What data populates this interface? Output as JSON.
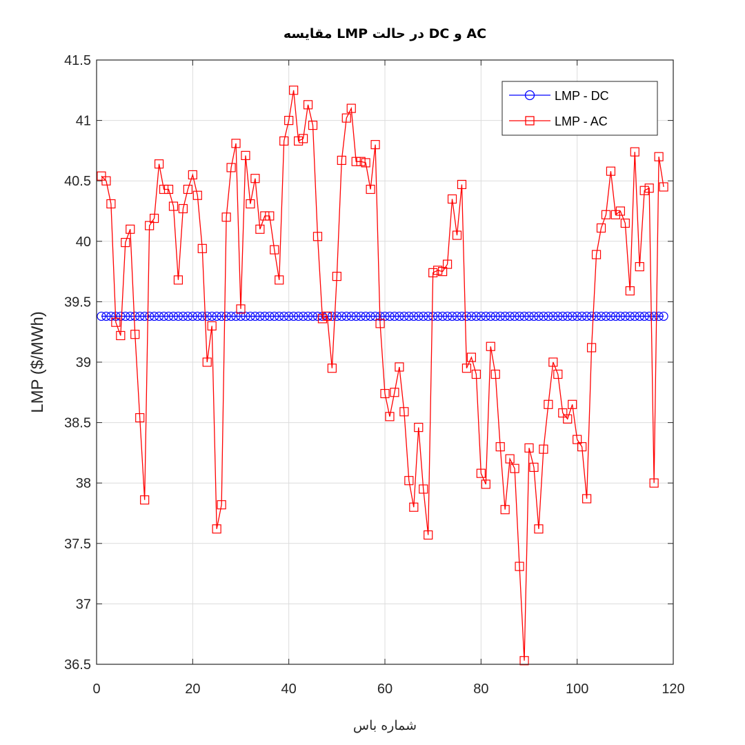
{
  "chart_data": {
    "type": "line",
    "title": "مقایسه LMP در حالت DC و AC",
    "xlabel": "شماره باس",
    "ylabel": "LMP  ($/MWh)",
    "xlim": [
      0,
      120
    ],
    "ylim": [
      36.5,
      41.5
    ],
    "xticks": [
      0,
      20,
      40,
      60,
      80,
      100,
      120
    ],
    "yticks": [
      36.5,
      37,
      37.5,
      38,
      38.5,
      39,
      39.5,
      40,
      40.5,
      41,
      41.5
    ],
    "xtick_labels": [
      "0",
      "20",
      "40",
      "60",
      "80",
      "100",
      "120"
    ],
    "ytick_labels": [
      "36.5",
      "37",
      "37.5",
      "38",
      "38.5",
      "39",
      "39.5",
      "40",
      "40.5",
      "41",
      "41.5"
    ],
    "grid": true,
    "legend_position": "top-right",
    "series": [
      {
        "name": "LMP - DC",
        "color": "#0000ff",
        "marker": "circle",
        "x_start": 1,
        "x_end": 118,
        "constant_value": 39.38
      },
      {
        "name": "LMP - AC",
        "color": "#ff0000",
        "marker": "square",
        "x_start": 1,
        "values": [
          40.54,
          40.5,
          40.31,
          39.33,
          39.22,
          39.99,
          40.1,
          39.23,
          38.54,
          37.86,
          40.13,
          40.19,
          40.64,
          40.43,
          40.43,
          40.29,
          39.68,
          40.27,
          40.43,
          40.55,
          40.38,
          39.94,
          39.0,
          39.3,
          37.62,
          37.82,
          40.2,
          40.61,
          40.81,
          39.44,
          40.71,
          40.31,
          40.52,
          40.1,
          40.21,
          40.21,
          39.93,
          39.68,
          40.83,
          41.0,
          41.25,
          40.83,
          40.85,
          41.13,
          40.96,
          40.04,
          39.36,
          39.38,
          38.95,
          39.71,
          40.67,
          41.02,
          41.1,
          40.66,
          40.66,
          40.65,
          40.43,
          40.8,
          39.32,
          38.74,
          38.55,
          38.75,
          38.96,
          38.59,
          38.02,
          37.8,
          38.46,
          37.95,
          37.57,
          39.74,
          39.76,
          39.75,
          39.81,
          40.35,
          40.05,
          40.47,
          38.95,
          39.04,
          38.9,
          38.08,
          37.99,
          39.13,
          38.9,
          38.3,
          37.78,
          38.2,
          38.12,
          37.31,
          36.53,
          38.29,
          38.13,
          37.62,
          38.28,
          38.65,
          39.0,
          38.9,
          38.58,
          38.53,
          38.65,
          38.36,
          38.3,
          37.87,
          39.12,
          39.89,
          40.11,
          40.22,
          40.58,
          40.22,
          40.25,
          40.15,
          39.59,
          40.74,
          39.79,
          40.42,
          40.44,
          38.0,
          40.7,
          40.45
        ]
      }
    ]
  }
}
